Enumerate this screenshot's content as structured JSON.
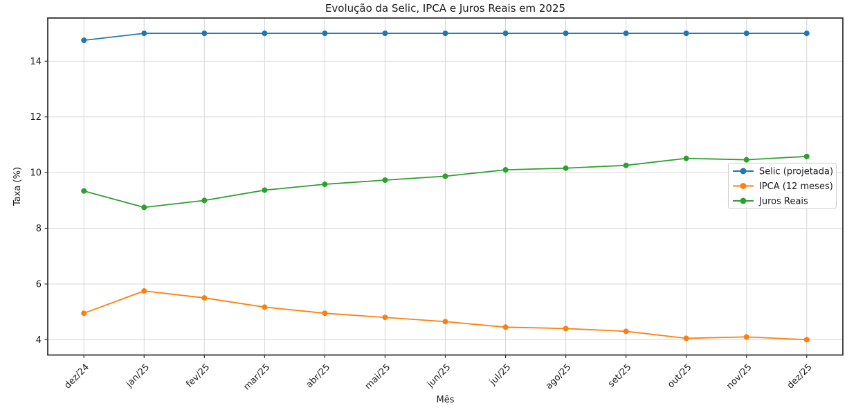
{
  "figure": {
    "title": "Evolução da Selic, IPCA e Juros Reais em 2025",
    "xlabel": "Mês",
    "ylabel": "Taxa (%)"
  },
  "chart_data": {
    "type": "line",
    "title": "Evolução da Selic, IPCA e Juros Reais em 2025",
    "xlabel": "Mês",
    "ylabel": "Taxa (%)",
    "categories": [
      "dez/24",
      "jan/25",
      "fev/25",
      "mar/25",
      "abr/25",
      "mai/25",
      "jun/25",
      "jul/25",
      "ago/25",
      "set/25",
      "out/25",
      "nov/25",
      "dez/25"
    ],
    "series": [
      {
        "name": "Selic (projetada)",
        "color": "#1f77b4",
        "values": [
          14.75,
          15.0,
          15.0,
          15.0,
          15.0,
          15.0,
          15.0,
          15.0,
          15.0,
          15.0,
          15.0,
          15.0,
          15.0
        ]
      },
      {
        "name": "IPCA (12 meses)",
        "color": "#ff7f0e",
        "values": [
          4.95,
          5.75,
          5.5,
          5.17,
          4.95,
          4.8,
          4.65,
          4.45,
          4.4,
          4.3,
          4.05,
          4.1,
          4.0
        ]
      },
      {
        "name": "Juros Reais",
        "color": "#2ca02c",
        "values": [
          9.34,
          8.75,
          9.0,
          9.37,
          9.58,
          9.73,
          9.87,
          10.1,
          10.16,
          10.26,
          10.51,
          10.46,
          10.58
        ]
      }
    ],
    "yticks": [
      4,
      6,
      8,
      10,
      12,
      14
    ],
    "ylim": [
      3.45,
      15.55
    ],
    "xlim": [
      -0.6,
      12.6
    ],
    "grid": true,
    "legend_position": "center-right",
    "colors": {
      "grid": "#d7d7d7",
      "spine": "#333333",
      "text": "#1a1a1a",
      "background": "#ffffff",
      "legend_border": "#cccccc"
    }
  }
}
